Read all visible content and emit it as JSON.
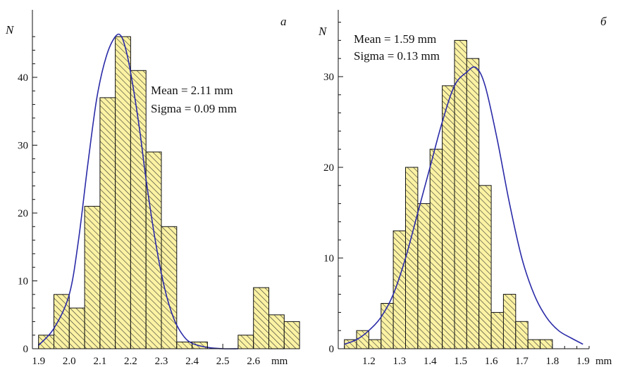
{
  "colors": {
    "bar_fill": "#fbf2a3",
    "hatch": "#333333",
    "fit_curve": "#2b2ba8"
  },
  "chart_data": [
    {
      "type": "bar",
      "panel_label": "a",
      "ylabel": "N",
      "xunit": "mm",
      "xlim": [
        1.88,
        2.72
      ],
      "ylim": [
        0,
        46
      ],
      "xticks": [
        {
          "v": 1.9,
          "t": "1.9"
        },
        {
          "v": 2.0,
          "t": "2.0"
        },
        {
          "v": 2.1,
          "t": "2.1"
        },
        {
          "v": 2.2,
          "t": "2.2"
        },
        {
          "v": 2.3,
          "t": "2.3"
        },
        {
          "v": 2.4,
          "t": "2.4"
        },
        {
          "v": 2.5,
          "t": "2.5"
        },
        {
          "v": 2.6,
          "t": "2.6"
        }
      ],
      "yticks": [
        {
          "v": 0,
          "t": "0"
        },
        {
          "v": 10,
          "t": "10"
        },
        {
          "v": 20,
          "t": "20"
        },
        {
          "v": 30,
          "t": "30"
        },
        {
          "v": 40,
          "t": "40"
        }
      ],
      "bin_width": 0.05,
      "bins": [
        1.9,
        1.95,
        2.0,
        2.05,
        2.1,
        2.15,
        2.2,
        2.25,
        2.3,
        2.35,
        2.4,
        2.55,
        2.6,
        2.65,
        2.7
      ],
      "values": [
        2,
        8,
        6,
        21,
        37,
        46,
        41,
        29,
        18,
        1,
        1,
        2,
        9,
        5,
        4
      ],
      "fit": {
        "x": [
          1.9,
          1.95,
          2.0,
          2.03,
          2.06,
          2.09,
          2.12,
          2.15,
          2.17,
          2.19,
          2.21,
          2.23,
          2.25,
          2.28,
          2.31,
          2.34,
          2.37,
          2.4,
          2.45,
          2.5,
          2.55
        ],
        "y": [
          0.5,
          3,
          8,
          16,
          27,
          37,
          43,
          46,
          46,
          43,
          38,
          32,
          25,
          16,
          9,
          4.5,
          2,
          0.8,
          0.2,
          0,
          0
        ]
      },
      "annotations": [
        "Mean = 2.11 mm",
        "Sigma = 0.09 mm"
      ]
    },
    {
      "type": "bar",
      "panel_label": "б",
      "ylabel": "N",
      "xunit": "mm",
      "xlim": [
        1.1,
        1.92
      ],
      "ylim": [
        0,
        36
      ],
      "xticks": [
        {
          "v": 1.2,
          "t": "1.2"
        },
        {
          "v": 1.3,
          "t": "1.3"
        },
        {
          "v": 1.4,
          "t": "1.4"
        },
        {
          "v": 1.5,
          "t": "1.5"
        },
        {
          "v": 1.6,
          "t": "1.6"
        },
        {
          "v": 1.7,
          "t": "1.7"
        },
        {
          "v": 1.8,
          "t": "1.8"
        },
        {
          "v": 1.9,
          "t": "1.9"
        }
      ],
      "yticks": [
        {
          "v": 0,
          "t": "0"
        },
        {
          "v": 10,
          "t": "10"
        },
        {
          "v": 20,
          "t": "20"
        },
        {
          "v": 30,
          "t": "30"
        }
      ],
      "bin_width": 0.04,
      "bins": [
        1.12,
        1.16,
        1.2,
        1.24,
        1.28,
        1.32,
        1.36,
        1.4,
        1.44,
        1.48,
        1.52,
        1.56,
        1.6,
        1.64,
        1.68,
        1.72,
        1.76,
        1.8,
        1.84
      ],
      "values": [
        1,
        2,
        1,
        5,
        13,
        20,
        16,
        22,
        29,
        34,
        32,
        18,
        4,
        6,
        3,
        1,
        1,
        0,
        0
      ],
      "fit": {
        "x": [
          1.12,
          1.16,
          1.2,
          1.24,
          1.28,
          1.32,
          1.36,
          1.4,
          1.44,
          1.48,
          1.52,
          1.55,
          1.58,
          1.62,
          1.66,
          1.7,
          1.74,
          1.78,
          1.82,
          1.86,
          1.9
        ],
        "y": [
          0.5,
          1,
          2,
          3.5,
          6,
          10,
          15,
          20,
          25,
          29,
          30.5,
          31,
          29,
          23,
          16,
          10,
          6,
          3.5,
          2,
          1.2,
          0.5
        ]
      },
      "annotations": [
        "Mean = 1.59 mm",
        "Sigma = 0.13 mm"
      ]
    }
  ]
}
